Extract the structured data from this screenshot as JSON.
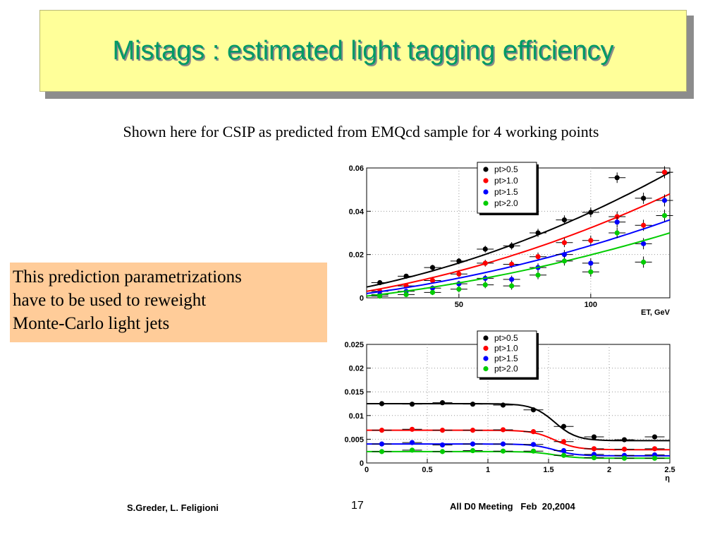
{
  "slide": {
    "title": "Mistags : estimated light tagging efficiency",
    "subtitle": "Shown here for CSIP as predicted from EMQcd sample for 4 working points",
    "note_lines": [
      "This prediction parametrizations",
      "have to be used to reweight",
      "Monte-Carlo light jets"
    ],
    "footer_left": "S.Greder, L. Feligioni",
    "page_number": "17",
    "footer_right": "All D0 Meeting   Feb  20,2004",
    "colors": {
      "title_bg": "#ffff99",
      "title_text": "#009966",
      "note_bg": "#ffcc99"
    }
  },
  "chart_data": [
    {
      "type": "scatter",
      "xlabel": "ET, GeV",
      "ylabel": "",
      "xlim": [
        15,
        130
      ],
      "ylim": [
        0,
        0.06
      ],
      "xticks": [
        50,
        100
      ],
      "xtick_labels": [
        "50",
        "100"
      ],
      "yticks": [
        0,
        0.02,
        0.04,
        0.06
      ],
      "ytick_labels": [
        "0",
        "0.02",
        "0.04",
        "0.06"
      ],
      "grid": true,
      "legend_position": "top-center",
      "fit_curves": true,
      "series": [
        {
          "name": "pt>0.5",
          "color": "#000000",
          "x": [
            20,
            30,
            40,
            50,
            60,
            70,
            80,
            90,
            100,
            110,
            120,
            128
          ],
          "y": [
            0.007,
            0.01,
            0.014,
            0.017,
            0.0225,
            0.024,
            0.03,
            0.036,
            0.0395,
            0.0555,
            0.046,
            0.058
          ],
          "fit": [
            0.005,
            0.058
          ]
        },
        {
          "name": "pt>1.0",
          "color": "#ff0000",
          "x": [
            20,
            30,
            40,
            50,
            60,
            70,
            80,
            90,
            100,
            110,
            120,
            128
          ],
          "y": [
            0.003,
            0.0055,
            0.008,
            0.011,
            0.016,
            0.0155,
            0.019,
            0.0255,
            0.0265,
            0.0375,
            0.0335,
            0.058
          ],
          "fit": [
            0.003,
            0.048
          ]
        },
        {
          "name": "pt>1.5",
          "color": "#0000ff",
          "x": [
            20,
            30,
            40,
            50,
            60,
            70,
            80,
            90,
            100,
            110,
            120,
            128
          ],
          "y": [
            0.0015,
            0.003,
            0.0045,
            0.0065,
            0.009,
            0.0085,
            0.014,
            0.02,
            0.016,
            0.035,
            0.025,
            0.045
          ],
          "fit": [
            0.002,
            0.036
          ]
        },
        {
          "name": "pt>2.0",
          "color": "#00cc00",
          "x": [
            20,
            30,
            40,
            50,
            60,
            70,
            80,
            90,
            100,
            110,
            120,
            128
          ],
          "y": [
            0.0008,
            0.0015,
            0.0025,
            0.004,
            0.006,
            0.0055,
            0.0105,
            0.017,
            0.012,
            0.03,
            0.0165,
            0.038
          ],
          "fit": [
            0.0008,
            0.03
          ]
        }
      ]
    },
    {
      "type": "scatter",
      "xlabel": "η",
      "ylabel": "",
      "xlim": [
        0,
        2.5
      ],
      "ylim": [
        0,
        0.025
      ],
      "xticks": [
        0,
        0.5,
        1,
        1.5,
        2,
        2.5
      ],
      "xtick_labels": [
        "0",
        "0.5",
        "1",
        "1.5",
        "2",
        "2.5"
      ],
      "yticks": [
        0,
        0.005,
        0.01,
        0.015,
        0.02,
        0.025
      ],
      "ytick_labels": [
        "0",
        "0.005",
        "0.01",
        "0.015",
        "0.02",
        "0.025"
      ],
      "grid": true,
      "legend_position": "top-center",
      "fit_curves": true,
      "series": [
        {
          "name": "pt>0.5",
          "color": "#000000",
          "x": [
            0.125,
            0.375,
            0.625,
            0.875,
            1.125,
            1.375,
            1.625,
            1.875,
            2.125,
            2.375
          ],
          "y": [
            0.0125,
            0.0124,
            0.0127,
            0.0124,
            0.0122,
            0.0112,
            0.0077,
            0.0055,
            0.0049,
            0.0055
          ],
          "fit": [
            0.0125,
            0.0047
          ]
        },
        {
          "name": "pt>1.0",
          "color": "#ff0000",
          "x": [
            0.125,
            0.375,
            0.625,
            0.875,
            1.125,
            1.375,
            1.625,
            1.875,
            2.125,
            2.375
          ],
          "y": [
            0.0069,
            0.0071,
            0.0069,
            0.0069,
            0.007,
            0.0066,
            0.0045,
            0.003,
            0.0029,
            0.003
          ],
          "fit": [
            0.0069,
            0.0028
          ]
        },
        {
          "name": "pt>1.5",
          "color": "#0000ff",
          "x": [
            0.125,
            0.375,
            0.625,
            0.875,
            1.125,
            1.375,
            1.625,
            1.875,
            2.125,
            2.375
          ],
          "y": [
            0.004,
            0.0043,
            0.0038,
            0.004,
            0.004,
            0.0039,
            0.0026,
            0.0018,
            0.0016,
            0.0017
          ],
          "fit": [
            0.004,
            0.0015
          ]
        },
        {
          "name": "pt>2.0",
          "color": "#00cc00",
          "x": [
            0.125,
            0.375,
            0.625,
            0.875,
            1.125,
            1.375,
            1.625,
            1.875,
            2.125,
            2.375
          ],
          "y": [
            0.0024,
            0.0027,
            0.0024,
            0.0026,
            0.0025,
            0.0025,
            0.0016,
            0.0011,
            0.001,
            0.001
          ],
          "fit": [
            0.0024,
            0.001
          ]
        }
      ]
    }
  ]
}
